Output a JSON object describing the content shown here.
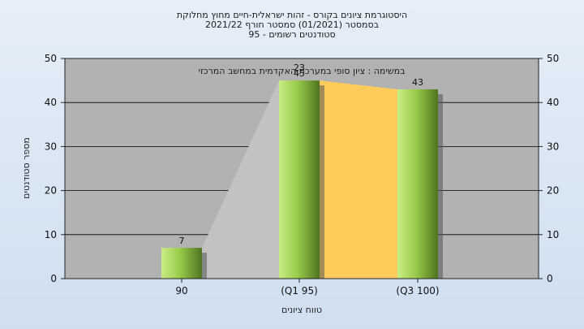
{
  "chart_data": {
    "type": "bar",
    "title_lines": [
      "היסטוגרמת ציונים בקורס - זהות ישראלית-חיים מחוץ מחלוקת",
      "בסמסטר  (01/2021)  סמסטר חורף 2021/22",
      "סטודנטים רשומים - 95"
    ],
    "annotation": "במשימה : ציון סופי במערכת האקדמית במחשב המרכזי",
    "xlabel": "טווח ציונים",
    "ylabel": "מספר סטודנטים",
    "categories": [
      "90",
      "(Q1 95)",
      "(Q3 100)"
    ],
    "values": [
      7,
      45,
      43
    ],
    "data_labels": [
      "7",
      "45",
      "43"
    ],
    "overlap_label": "23",
    "ylim": [
      0,
      50
    ],
    "yticks": [
      0,
      10,
      20,
      30,
      40,
      50
    ],
    "grid": true,
    "colors": {
      "plot_bg": "#b2b2b2",
      "bar_light": "#c9ec86",
      "bar_mid": "#9acb4a",
      "bar_dark": "#4e7420",
      "q_band": "#ffcc5c",
      "lower_band": "#c2c2c2",
      "grid": "#000000"
    }
  }
}
